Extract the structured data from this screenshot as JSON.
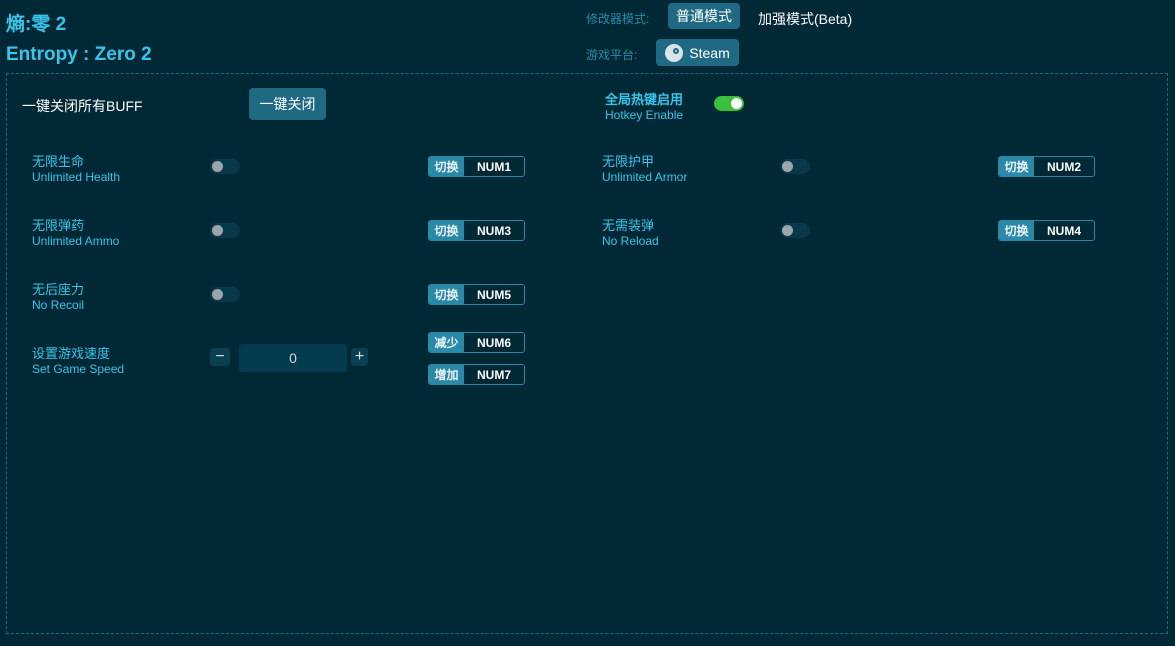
{
  "title_cn": "熵:零 2",
  "title_en": "Entropy : Zero 2",
  "mode": {
    "label": "修改器模式:",
    "normal": "普通模式",
    "enhanced": "加强模式(Beta)"
  },
  "platform": {
    "label": "游戏平台:",
    "value": "Steam",
    "icon": "steam-icon"
  },
  "close_all": {
    "label": "一键关闭所有BUFF",
    "button": "一键关闭"
  },
  "hotkey": {
    "cn": "全局热键启用",
    "en": "Hotkey Enable",
    "enabled": true,
    "color": "#3ac03a"
  },
  "cheats": [
    {
      "cn": "无限生命",
      "en": "Unlimited Health",
      "key_label": "切换",
      "key": "NUM1",
      "on": false
    },
    {
      "cn": "无限护甲",
      "en": "Unlimited Armor",
      "key_label": "切换",
      "key": "NUM2",
      "on": false
    },
    {
      "cn": "无限弹药",
      "en": "Unlimited Ammo",
      "key_label": "切换",
      "key": "NUM3",
      "on": false
    },
    {
      "cn": "无需装弹",
      "en": "No Reload",
      "key_label": "切换",
      "key": "NUM4",
      "on": false
    },
    {
      "cn": "无后座力",
      "en": "No Recoil",
      "key_label": "切换",
      "key": "NUM5",
      "on": false
    }
  ],
  "speed": {
    "cn": "设置游戏速度",
    "en": "Set Game Speed",
    "value": "0",
    "minus": "−",
    "plus": "+",
    "dec_label": "减少",
    "dec_key": "NUM6",
    "inc_label": "增加",
    "inc_key": "NUM7"
  }
}
